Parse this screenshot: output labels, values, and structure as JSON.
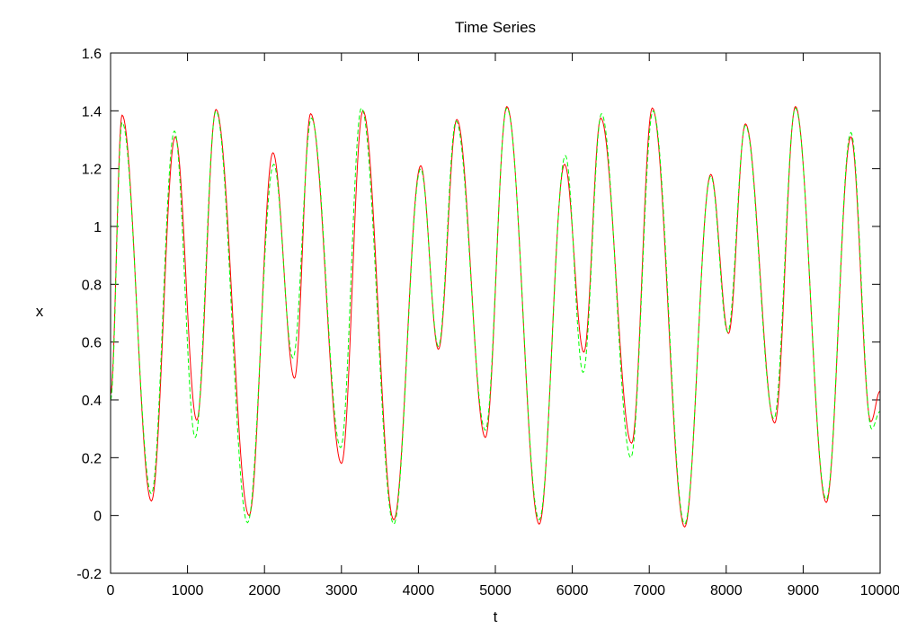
{
  "chart_data": {
    "type": "line",
    "title": "Time Series",
    "xlabel": "t",
    "ylabel": "x",
    "xlim": [
      0,
      10000
    ],
    "ylim": [
      -0.2,
      1.6
    ],
    "grid": false,
    "legend": "none",
    "x_ticks": [
      "0",
      "1000",
      "2000",
      "3000",
      "4000",
      "5000",
      "6000",
      "7000",
      "8000",
      "9000",
      "10000"
    ],
    "y_ticks": [
      "-0.2",
      "0",
      "0.2",
      "0.4",
      "0.6",
      "0.8",
      "1",
      "1.2",
      "1.4",
      "1.6"
    ],
    "series": [
      {
        "color": "#ff0000",
        "style": "solid",
        "x": [
          0,
          150,
          530,
          840,
          1120,
          1370,
          1800,
          2110,
          2390,
          2600,
          3000,
          3280,
          3680,
          4030,
          4260,
          4500,
          4870,
          5150,
          5570,
          5900,
          6150,
          6370,
          6770,
          7040,
          7460,
          7800,
          8030,
          8250,
          8630,
          8900,
          9300,
          9620,
          9880,
          10000
        ],
        "y": [
          0.42,
          1.385,
          0.05,
          1.31,
          0.33,
          1.405,
          0.0,
          1.255,
          0.475,
          1.39,
          0.18,
          1.4,
          -0.015,
          1.21,
          0.575,
          1.37,
          0.27,
          1.415,
          -0.03,
          1.215,
          0.565,
          1.375,
          0.25,
          1.41,
          -0.04,
          1.18,
          0.63,
          1.355,
          0.32,
          1.415,
          0.045,
          1.31,
          0.325,
          0.43
        ]
      },
      {
        "color": "#00ff00",
        "style": "dashed",
        "x": [
          0,
          150,
          530,
          830,
          1100,
          1370,
          1780,
          2120,
          2370,
          2610,
          2990,
          3260,
          3680,
          4030,
          4260,
          4490,
          4870,
          5150,
          5570,
          5910,
          6140,
          6380,
          6760,
          7050,
          7460,
          7800,
          8020,
          8250,
          8620,
          8900,
          9300,
          9620,
          9890,
          10000
        ],
        "y": [
          0.4,
          1.36,
          0.075,
          1.33,
          0.27,
          1.4,
          -0.025,
          1.215,
          0.545,
          1.375,
          0.235,
          1.41,
          -0.03,
          1.2,
          0.585,
          1.365,
          0.295,
          1.41,
          -0.015,
          1.245,
          0.495,
          1.39,
          0.2,
          1.4,
          -0.03,
          1.175,
          0.635,
          1.35,
          0.335,
          1.41,
          0.055,
          1.325,
          0.3,
          0.36
        ]
      }
    ]
  }
}
